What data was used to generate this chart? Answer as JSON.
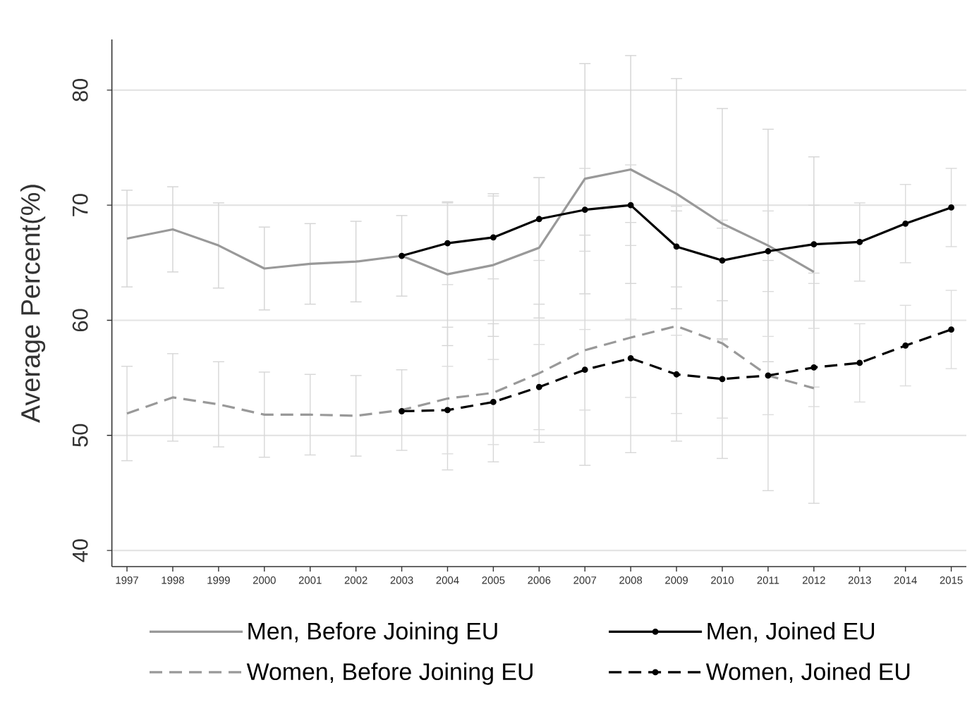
{
  "chart_data": {
    "type": "line",
    "ylabel": "Average Percent(%)",
    "xlim": [
      1996.67,
      2015.33
    ],
    "xticks": [
      1997,
      1998,
      1999,
      2000,
      2001,
      2002,
      2003,
      2004,
      2005,
      2006,
      2007,
      2008,
      2009,
      2010,
      2011,
      2012,
      2013,
      2014,
      2015
    ],
    "ylim": [
      38.6,
      84.4
    ],
    "yticks": [
      40,
      50,
      60,
      70,
      80
    ],
    "grid": "y",
    "legend": "bottom",
    "series": [
      {
        "name": "Men, Before Joining EU",
        "color": "#999999",
        "line_style": "solid",
        "x": [
          1997,
          1998,
          1999,
          2000,
          2001,
          2002,
          2003,
          2004,
          2005,
          2006,
          2007,
          2008,
          2009,
          2010,
          2011,
          2012
        ],
        "values": [
          67.1,
          67.9,
          66.5,
          64.5,
          64.9,
          65.1,
          65.6,
          64.0,
          64.8,
          66.3,
          72.3,
          73.1,
          71.0,
          68.4,
          66.5,
          64.2
        ],
        "errors": [
          4.2,
          3.7,
          3.7,
          3.6,
          3.5,
          3.5,
          3.5,
          6.2,
          6.2,
          6.1,
          10.0,
          9.9,
          10.0,
          10.0,
          10.1,
          10.0
        ]
      },
      {
        "name": "Men, Joined EU",
        "color": "#000000",
        "line_style": "solid",
        "marker": "circle",
        "x": [
          2003,
          2004,
          2005,
          2006,
          2007,
          2008,
          2009,
          2010,
          2011,
          2012,
          2013,
          2014,
          2015
        ],
        "values": [
          65.6,
          66.7,
          67.2,
          68.8,
          69.6,
          70.0,
          66.4,
          65.2,
          66.0,
          66.6,
          66.8,
          68.4,
          69.8
        ],
        "errors": [
          null,
          3.6,
          3.6,
          3.6,
          3.6,
          3.5,
          3.5,
          3.5,
          3.5,
          3.4,
          3.4,
          3.4,
          3.4
        ]
      },
      {
        "name": "Women, Before Joining EU",
        "color": "#999999",
        "line_style": "dashed",
        "x": [
          1997,
          1998,
          1999,
          2000,
          2001,
          2002,
          2003,
          2004,
          2005,
          2006,
          2007,
          2008,
          2009,
          2010,
          2011,
          2012
        ],
        "values": [
          51.9,
          53.3,
          52.7,
          51.8,
          51.8,
          51.7,
          52.2,
          53.2,
          53.7,
          55.4,
          57.4,
          58.5,
          59.5,
          58.0,
          55.2,
          54.1
        ],
        "errors": [
          4.1,
          3.8,
          3.7,
          3.7,
          3.5,
          3.5,
          3.5,
          6.2,
          6.0,
          6.0,
          10.0,
          10.0,
          10.0,
          10.0,
          10.0,
          10.0
        ]
      },
      {
        "name": "Women, Joined EU",
        "color": "#000000",
        "line_style": "dashed",
        "marker": "circle",
        "x": [
          2003,
          2004,
          2005,
          2006,
          2007,
          2008,
          2009,
          2010,
          2011,
          2012,
          2013,
          2014,
          2015
        ],
        "values": [
          52.1,
          52.2,
          52.9,
          54.2,
          55.7,
          56.7,
          55.3,
          54.9,
          55.2,
          55.9,
          56.3,
          57.8,
          59.2
        ],
        "errors": [
          null,
          3.8,
          3.7,
          3.7,
          3.5,
          3.4,
          3.4,
          3.4,
          3.4,
          3.4,
          3.4,
          3.5,
          3.4
        ]
      }
    ]
  }
}
